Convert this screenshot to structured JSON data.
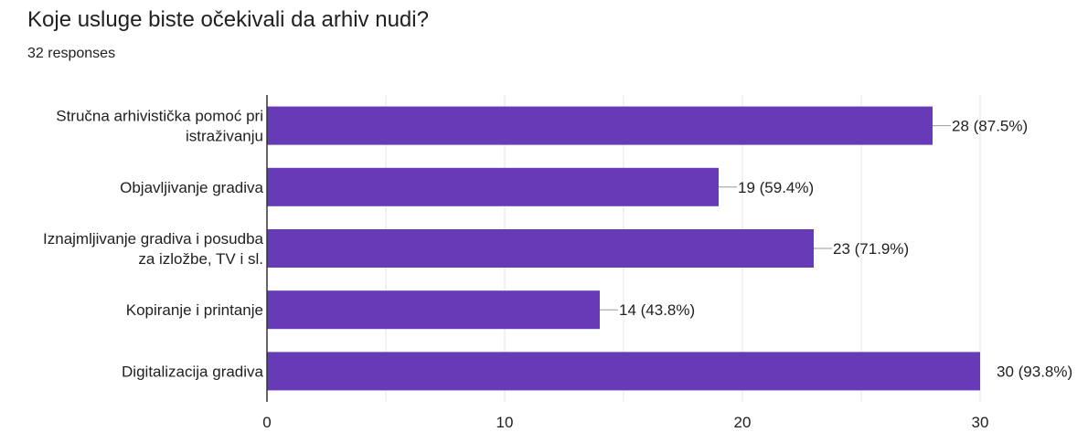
{
  "header": {
    "title": "Koje usluge biste očekivali da arhiv nudi?",
    "responses": "32 responses"
  },
  "chart_data": {
    "type": "bar",
    "orientation": "horizontal",
    "categories": [
      "Stručna arhivistička pomoć pri istraživanju",
      "Objavljivanje gradiva",
      "Iznajmljivanje gradiva i posudba za izložbe, TV i sl.",
      "Kopiranje i printanje",
      "Digitalizacija gradiva"
    ],
    "category_label_lines": [
      [
        "Stručna arhivistička pomoć pri",
        "istraživanju"
      ],
      [
        "Objavljivanje gradiva"
      ],
      [
        "Iznajmljivanje gradiva i posudba",
        "za izložbe, TV i sl."
      ],
      [
        "Kopiranje i printanje"
      ],
      [
        "Digitalizacija gradiva"
      ]
    ],
    "values": [
      28,
      19,
      23,
      14,
      30
    ],
    "data_labels": [
      "28 (87.5%)",
      "19 (59.4%)",
      "23 (71.9%)",
      "14 (43.8%)",
      "30 (93.8%)"
    ],
    "xlim": [
      0,
      30
    ],
    "xticks": [
      0,
      10,
      20,
      30
    ],
    "xtick_labels": [
      "0",
      "10",
      "20",
      "30"
    ],
    "grid": true,
    "bar_color": "#673ab7",
    "grid_color": "#e6e6e6",
    "axis_color": "#333333",
    "leader_color": "#999999"
  }
}
